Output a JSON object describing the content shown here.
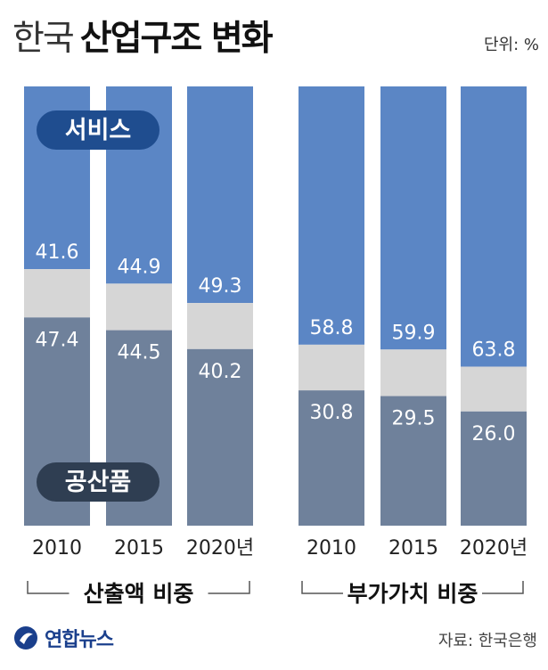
{
  "title_light": "한국",
  "title_bold": "산업구조 변화",
  "unit": "단위: %",
  "source": "자료: 한국은행",
  "logo_text": "연합뉴스",
  "colors": {
    "service": "#5b86c5",
    "other": "#d6d6d6",
    "industry": "#6f819b",
    "badge_service": "#1f4d8f",
    "badge_industry": "#2f3e52"
  },
  "chart_data": [
    {
      "type": "bar",
      "stacked": true,
      "group_label": "산출액 비중",
      "categories": [
        "2010",
        "2015",
        "2020년"
      ],
      "series": [
        {
          "name": "공산품",
          "values": [
            47.4,
            44.5,
            40.2
          ]
        },
        {
          "name": "서비스",
          "values": [
            41.6,
            44.9,
            49.3
          ]
        }
      ],
      "ylim": [
        0,
        100
      ]
    },
    {
      "type": "bar",
      "stacked": true,
      "group_label": "부가가치 비중",
      "categories": [
        "2010",
        "2015",
        "2020년"
      ],
      "series": [
        {
          "name": "공산품",
          "values": [
            30.8,
            29.5,
            26.0
          ]
        },
        {
          "name": "서비스",
          "values": [
            58.8,
            59.9,
            63.8
          ]
        }
      ],
      "ylim": [
        0,
        100
      ]
    }
  ]
}
